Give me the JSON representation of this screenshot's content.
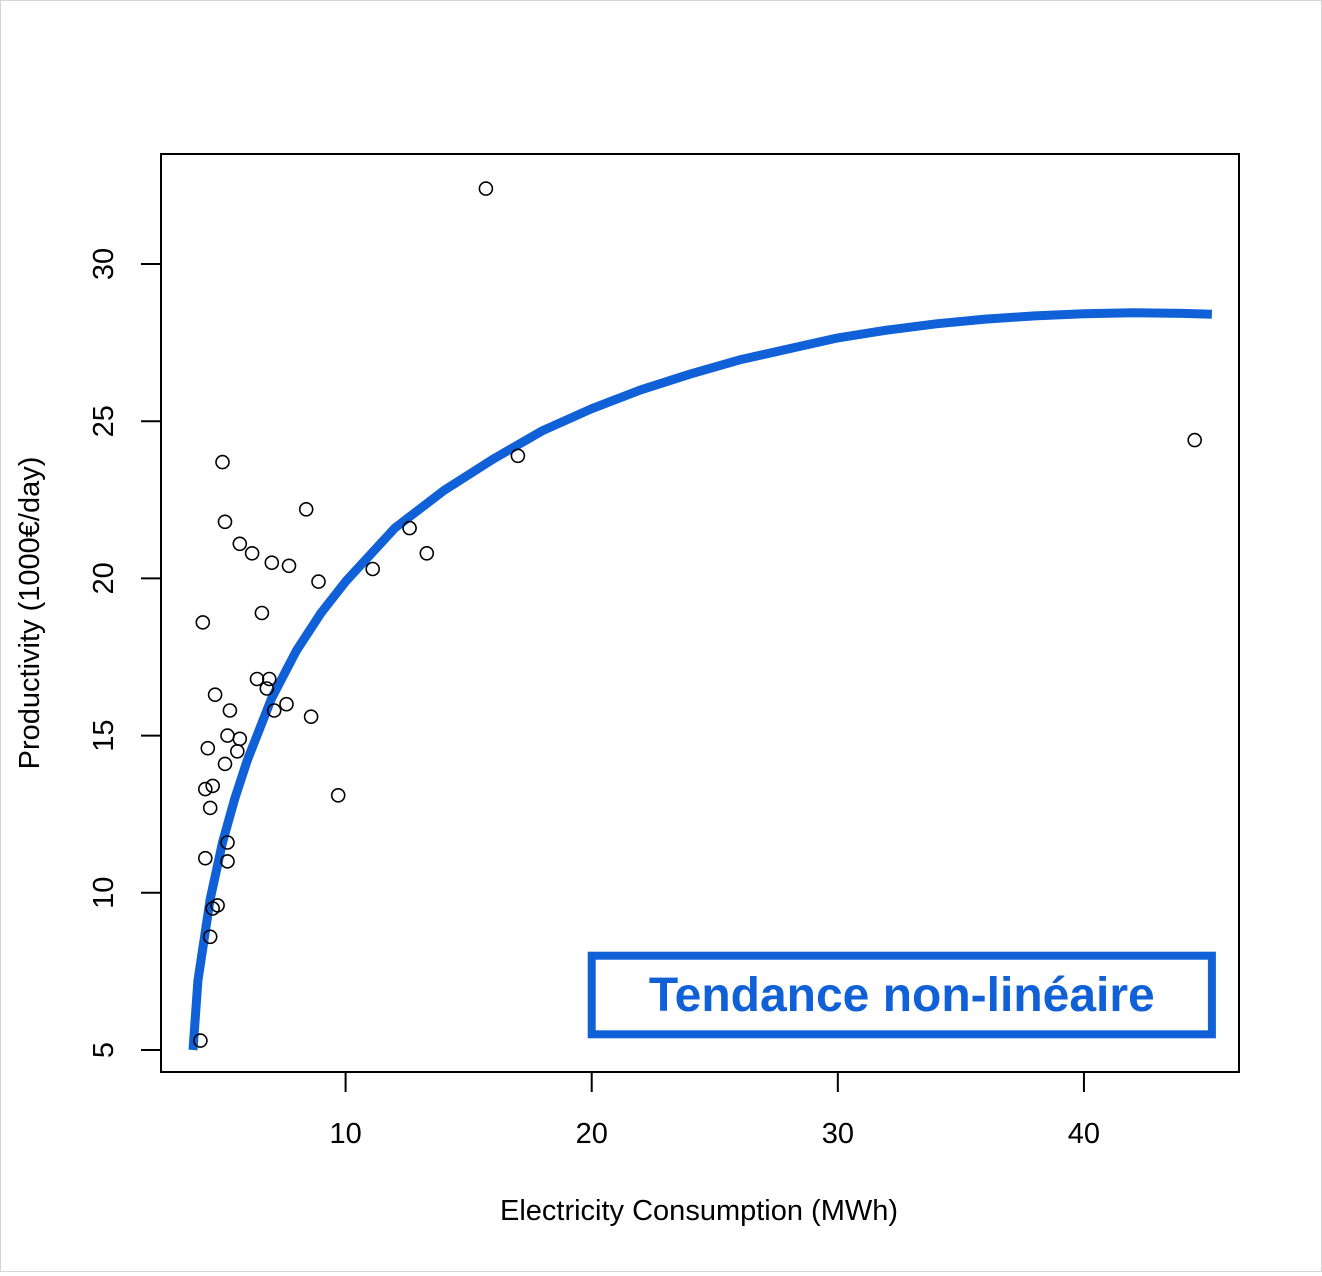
{
  "chart_data": {
    "type": "scatter",
    "title": "",
    "xlabel": "Electricity Consumption (MWh)",
    "ylabel": "Productivity (1000€/day)",
    "xlim": [
      2.5,
      46.3
    ],
    "ylim": [
      4.3,
      33.5
    ],
    "x_ticks": [
      10,
      20,
      30,
      40
    ],
    "y_ticks": [
      5,
      10,
      15,
      20,
      25,
      30
    ],
    "grid": false,
    "legend": "none",
    "point_color": "#000000",
    "trend_color": "#1060d8",
    "annotation": {
      "text": "Tendance non-linéaire",
      "color": "#1060d8",
      "x_range": [
        20.0,
        45.2
      ],
      "y_range": [
        5.5,
        8.0
      ]
    },
    "points": [
      {
        "x": 4.1,
        "y": 5.3
      },
      {
        "x": 4.5,
        "y": 8.6
      },
      {
        "x": 4.6,
        "y": 9.5
      },
      {
        "x": 4.8,
        "y": 9.6
      },
      {
        "x": 5.2,
        "y": 11.0
      },
      {
        "x": 5.2,
        "y": 11.6
      },
      {
        "x": 4.3,
        "y": 11.1
      },
      {
        "x": 4.5,
        "y": 12.7
      },
      {
        "x": 4.3,
        "y": 13.3
      },
      {
        "x": 4.6,
        "y": 13.4
      },
      {
        "x": 4.4,
        "y": 14.6
      },
      {
        "x": 5.1,
        "y": 14.1
      },
      {
        "x": 5.2,
        "y": 15.0
      },
      {
        "x": 5.3,
        "y": 15.8
      },
      {
        "x": 4.7,
        "y": 16.3
      },
      {
        "x": 5.6,
        "y": 14.5
      },
      {
        "x": 5.7,
        "y": 14.9
      },
      {
        "x": 4.2,
        "y": 18.6
      },
      {
        "x": 5.0,
        "y": 23.7
      },
      {
        "x": 5.1,
        "y": 21.8
      },
      {
        "x": 5.7,
        "y": 21.1
      },
      {
        "x": 6.2,
        "y": 20.8
      },
      {
        "x": 6.6,
        "y": 18.9
      },
      {
        "x": 6.4,
        "y": 16.8
      },
      {
        "x": 6.9,
        "y": 16.8
      },
      {
        "x": 6.8,
        "y": 16.5
      },
      {
        "x": 7.1,
        "y": 15.8
      },
      {
        "x": 7.6,
        "y": 16.0
      },
      {
        "x": 7.0,
        "y": 20.5
      },
      {
        "x": 7.7,
        "y": 20.4
      },
      {
        "x": 8.6,
        "y": 15.6
      },
      {
        "x": 8.9,
        "y": 19.9
      },
      {
        "x": 8.4,
        "y": 22.2
      },
      {
        "x": 9.7,
        "y": 13.1
      },
      {
        "x": 11.1,
        "y": 20.3
      },
      {
        "x": 12.6,
        "y": 21.6
      },
      {
        "x": 13.3,
        "y": 20.8
      },
      {
        "x": 15.7,
        "y": 32.4
      },
      {
        "x": 17.0,
        "y": 23.9
      },
      {
        "x": 44.5,
        "y": 24.4
      }
    ],
    "trend_line": {
      "name": "",
      "x": [
        3.8,
        4.0,
        4.5,
        5.0,
        5.5,
        6.0,
        7.0,
        8.0,
        9.0,
        10.0,
        12.0,
        14.0,
        16.0,
        18.0,
        20.0,
        22.0,
        24.0,
        26.0,
        28.0,
        30.0,
        32.0,
        34.0,
        36.0,
        38.0,
        40.0,
        42.0,
        44.0,
        45.2
      ],
      "y": [
        5.0,
        7.2,
        9.8,
        11.6,
        13.0,
        14.2,
        16.2,
        17.7,
        18.9,
        19.9,
        21.6,
        22.8,
        23.8,
        24.7,
        25.4,
        26.0,
        26.5,
        26.95,
        27.3,
        27.65,
        27.9,
        28.1,
        28.25,
        28.35,
        28.42,
        28.45,
        28.43,
        28.4
      ]
    }
  }
}
